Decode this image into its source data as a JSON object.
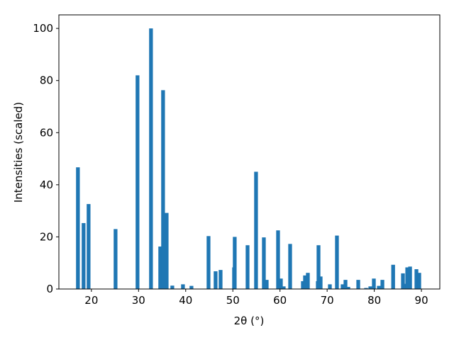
{
  "chart_data": {
    "type": "bar",
    "xlabel": "2θ (°)",
    "ylabel": "Intensities (scaled)",
    "color": "#1f77b4",
    "x": [
      17.14,
      18.34,
      19.4,
      25.12,
      29.78,
      32.64,
      34.6,
      35.2,
      35.96,
      37.16,
      39.42,
      41.22,
      44.84,
      46.34,
      47.4,
      50.26,
      50.4,
      53.12,
      54.92,
      56.58,
      57.18,
      59.59,
      60.19,
      60.79,
      62.15,
      64.86,
      65.31,
      65.91,
      68.02,
      68.17,
      68.62,
      70.58,
      72.08,
      73.29,
      73.89,
      74.49,
      76.6,
      78.26,
      79.16,
      79.91,
      80.97,
      81.72,
      84.0,
      86.08,
      86.53,
      86.99,
      87.59,
      88.94,
      89.54
    ],
    "values": [
      46.7,
      25.3,
      32.6,
      23,
      82,
      100,
      16.3,
      76.3,
      29.2,
      1.3,
      1.8,
      1.2,
      20.3,
      6.8,
      7.3,
      8.3,
      20,
      16.8,
      45,
      19.8,
      3.5,
      22.5,
      4,
      1,
      17.3,
      3,
      5.2,
      6.2,
      3,
      16.8,
      4.8,
      1.8,
      20.5,
      1.8,
      3.5,
      0.8,
      3.5,
      0.4,
      1,
      4,
      1.2,
      3.5,
      9.3,
      6,
      2,
      8.3,
      8.6,
      7.6,
      6.2
    ],
    "xlim": [
      13.1,
      93.9
    ],
    "ylim": [
      0,
      105.2
    ],
    "xticks": [
      20,
      30,
      40,
      50,
      60,
      70,
      80,
      90
    ],
    "yticks": [
      0,
      20,
      40,
      60,
      80,
      100
    ],
    "grid": false
  }
}
